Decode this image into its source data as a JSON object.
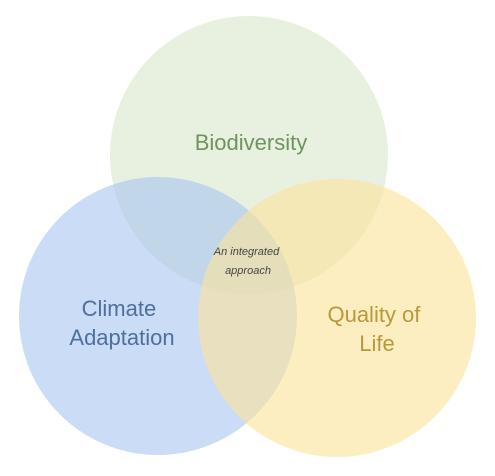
{
  "diagram": {
    "sets": [
      {
        "id": "biodiversity",
        "label_lines": [
          "Biodiversity"
        ],
        "fill": "#d9e8cc",
        "text_color": "#6f9360"
      },
      {
        "id": "climate",
        "label_lines": [
          "Climate",
          "Adaptation"
        ],
        "fill": "#a8c4f0",
        "text_color": "#4f6f9c"
      },
      {
        "id": "quality",
        "label_lines": [
          "Quality of",
          "Life"
        ],
        "fill": "#fbe39a",
        "text_color": "#b89a3a"
      }
    ],
    "center": {
      "label_lines": [
        "An integrated",
        "approach"
      ],
      "text_color": "#444444"
    }
  }
}
